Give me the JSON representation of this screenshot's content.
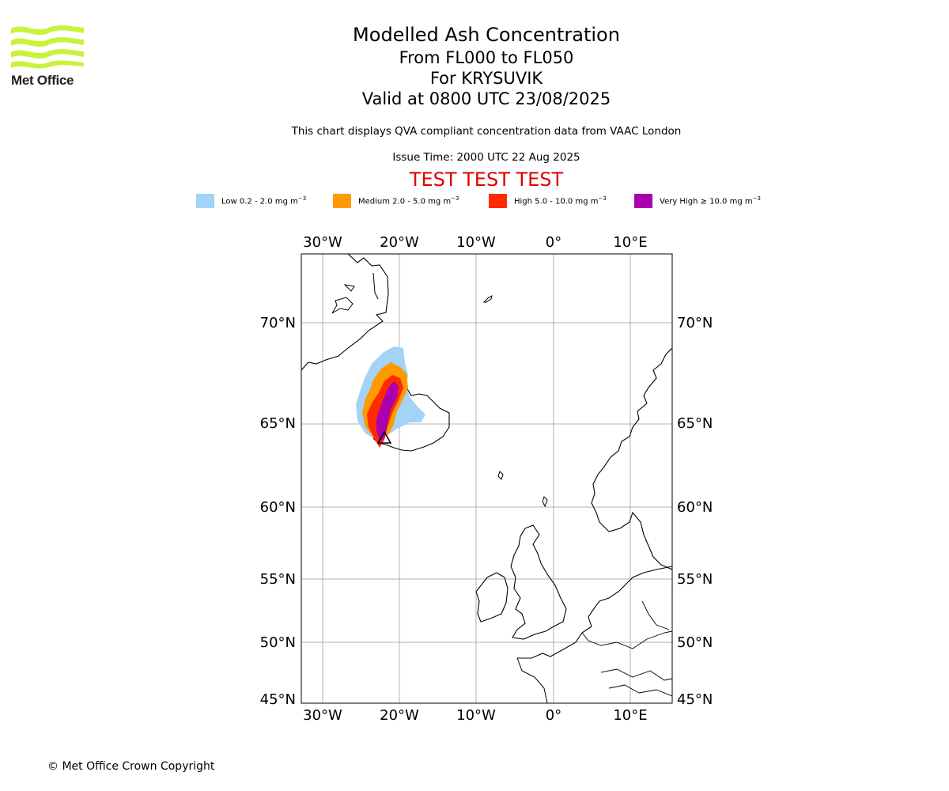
{
  "logo": {
    "text": "Met Office"
  },
  "title": {
    "line1": "Modelled Ash Concentration",
    "line2": "From FL000 to FL050",
    "line3": "For KRYSUVIK",
    "line4": "Valid at 0800 UTC 23/08/2025"
  },
  "subtitle": "This chart displays QVA compliant concentration data from VAAC London",
  "issue_time": "Issue Time: 2000 UTC 22 Aug 2025",
  "test_banner": "TEST TEST TEST",
  "legend": [
    {
      "label": "Low 0.2 - 2.0 mg m",
      "color": "#a3d3f7"
    },
    {
      "label": "Medium 2.0 - 5.0 mg m",
      "color": "#ff9a00"
    },
    {
      "label": "High 5.0 - 10.0 mg m",
      "color": "#ff2a00"
    },
    {
      "label": "Very High ≥ 10.0 mg m",
      "color": "#aa00b0"
    }
  ],
  "legend_unit_exponent": "−3",
  "map": {
    "lon_ticks": [
      "30°W",
      "20°W",
      "10°W",
      "0°",
      "10°E"
    ],
    "lat_ticks": [
      "70°N",
      "65°N",
      "60°N",
      "55°N",
      "50°N",
      "45°N"
    ],
    "volcano": "KRYSUVIK"
  },
  "copyright": "© Met Office Crown Copyright"
}
